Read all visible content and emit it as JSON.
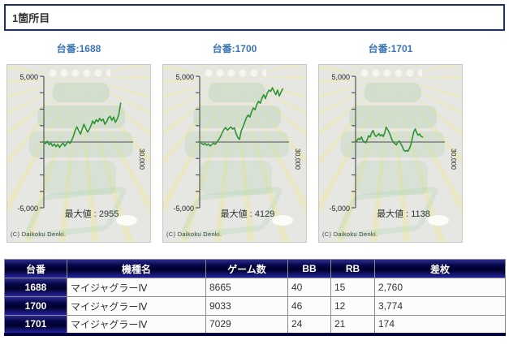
{
  "page": {
    "title": "1箇所目"
  },
  "copyright": "(C) Daikoku Denki.",
  "colors": {
    "line_green": "#2d9334",
    "title_blue": "#3b74b8",
    "table_navy": "#000040",
    "axis_gray": "#555555",
    "zero_line_gray": "#6b6b6b"
  },
  "chart_data": [
    {
      "type": "line",
      "title": "台番:1688",
      "machine_no": "1688",
      "y_top": "5,000",
      "y_bottom": "-5,000",
      "x_max": "30,000",
      "ylim": [
        -5000,
        5000
      ],
      "x_axis_max": 30000,
      "max_label": "最大値 : 2955",
      "max_value": 2955,
      "x_extent": 0.86,
      "samples": [
        0,
        -120,
        60,
        -200,
        -80,
        -300,
        -150,
        -350,
        -180,
        -400,
        -220,
        -80,
        -300,
        -120,
        50,
        -100,
        150,
        450,
        900,
        1150,
        850,
        600,
        1000,
        1350,
        1050,
        750,
        950,
        1250,
        1600,
        1400,
        1700,
        1550,
        1800,
        1600,
        1750,
        1350,
        1550,
        1850,
        1950,
        1650,
        1900,
        1500,
        1750,
        2100,
        2955
      ]
    },
    {
      "type": "line",
      "title": "台番:1700",
      "machine_no": "1700",
      "y_top": "5,000",
      "y_bottom": "-5,000",
      "x_max": "30,000",
      "ylim": [
        -5000,
        5000
      ],
      "x_axis_max": 30000,
      "max_label": "最大値 : 4129",
      "max_value": 4129,
      "x_extent": 0.93,
      "samples": [
        0,
        -80,
        -200,
        -100,
        -250,
        -150,
        -300,
        -200,
        -80,
        -180,
        20,
        180,
        420,
        700,
        950,
        1100,
        900,
        1020,
        1150,
        980,
        1080,
        650,
        350,
        200,
        850,
        1150,
        1500,
        1850,
        2050,
        1900,
        2300,
        2600,
        2450,
        2850,
        3100,
        2950,
        3350,
        3600,
        3300,
        3700,
        3950,
        3850,
        4129,
        3850,
        3600,
        3950,
        3500,
        3800,
        4050
      ]
    },
    {
      "type": "line",
      "title": "台番:1701",
      "machine_no": "1701",
      "y_top": "5,000",
      "y_bottom": "-5,000",
      "x_max": "30,000",
      "ylim": [
        -5000,
        5000
      ],
      "x_axis_max": 30000,
      "max_label": "最大値 : 1138",
      "max_value": 1138,
      "x_extent": 0.75,
      "samples": [
        0,
        120,
        280,
        180,
        380,
        120,
        20,
        -60,
        180,
        480,
        380,
        680,
        880,
        580,
        420,
        520,
        640,
        460,
        560,
        420,
        700,
        1138,
        950,
        750,
        480,
        180,
        -20,
        -120,
        -220,
        -20,
        80,
        -120,
        -320,
        -600,
        -700,
        -640,
        -700,
        -480,
        -180,
        280,
        780,
        1000,
        700,
        520,
        620,
        430,
        380
      ]
    }
  ],
  "table": {
    "headers": [
      "台番",
      "機種名",
      "ゲーム数",
      "BB",
      "RB",
      "差枚"
    ],
    "rows": [
      {
        "daiban": "1688",
        "model": "マイジャグラーⅣ",
        "games": "8665",
        "bb": "40",
        "rb": "15",
        "diff": "2,760"
      },
      {
        "daiban": "1700",
        "model": "マイジャグラーⅣ",
        "games": "9033",
        "bb": "46",
        "rb": "12",
        "diff": "3,774"
      },
      {
        "daiban": "1701",
        "model": "マイジャグラーⅣ",
        "games": "7029",
        "bb": "24",
        "rb": "21",
        "diff": "174"
      }
    ]
  }
}
